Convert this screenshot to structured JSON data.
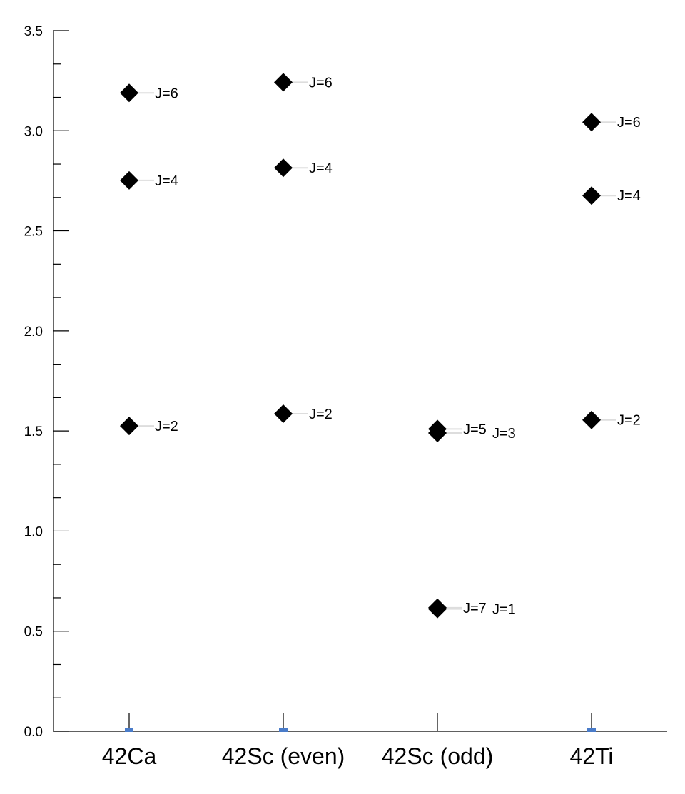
{
  "chart_data": {
    "type": "scatter",
    "title": "",
    "xlabel": "",
    "ylabel": "",
    "ylim": [
      0,
      3.5
    ],
    "yticks": [
      "0.0",
      "0.5",
      "1.0",
      "1.5",
      "2.0",
      "2.5",
      "3.0",
      "3.5"
    ],
    "categories": [
      "42Ca",
      "42Sc (even)",
      "42Sc (odd)",
      "42Ti"
    ],
    "grid": false,
    "legend": "none",
    "marker": "diamond",
    "colors": {
      "marker": "#000000",
      "axis": "#000000",
      "leader": "#dddddd",
      "ground_state": "#4a7cc9"
    },
    "ground_state_markers": [
      "42Ca",
      "42Sc (even)",
      "42Ti"
    ],
    "levels": [
      {
        "category": "42Ca",
        "label": "J=2",
        "value": 1.525
      },
      {
        "category": "42Ca",
        "label": "J=4",
        "value": 2.752
      },
      {
        "category": "42Ca",
        "label": "J=6",
        "value": 3.189
      },
      {
        "category": "42Sc (even)",
        "label": "J=2",
        "value": 1.586
      },
      {
        "category": "42Sc (even)",
        "label": "J=4",
        "value": 2.815
      },
      {
        "category": "42Sc (even)",
        "label": "J=6",
        "value": 3.242
      },
      {
        "category": "42Sc (odd)",
        "label": "J=5",
        "value": 1.51
      },
      {
        "category": "42Sc (odd)",
        "label": "J=3",
        "value": 1.49
      },
      {
        "category": "42Sc (odd)",
        "label": "J=7",
        "value": 0.617
      },
      {
        "category": "42Sc (odd)",
        "label": "J=1",
        "value": 0.611
      },
      {
        "category": "42Ti",
        "label": "J=2",
        "value": 1.555
      },
      {
        "category": "42Ti",
        "label": "J=4",
        "value": 2.676
      },
      {
        "category": "42Ti",
        "label": "J=6",
        "value": 3.043
      }
    ]
  }
}
